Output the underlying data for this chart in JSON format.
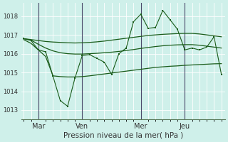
{
  "background_color": "#cff0ea",
  "grid_color": "#b8e0db",
  "line_color": "#1a5c1a",
  "vline_color": "#4a4a6a",
  "ylabel_values": [
    1013,
    1014,
    1015,
    1016,
    1017,
    1018
  ],
  "ylim": [
    1012.5,
    1018.7
  ],
  "xlabel": "Pression niveau de la mer( hPa )",
  "xtick_labels": [
    "Mar",
    "Ven",
    "Mer",
    "Jeu"
  ],
  "xtick_positions": [
    2,
    8,
    16,
    22
  ],
  "vline_positions": [
    2,
    8,
    16,
    22
  ],
  "smooth_upper": [
    1016.8,
    1016.75,
    1016.7,
    1016.65,
    1016.62,
    1016.6,
    1016.58,
    1016.57,
    1016.58,
    1016.6,
    1016.63,
    1016.67,
    1016.72,
    1016.77,
    1016.82,
    1016.87,
    1016.92,
    1016.97,
    1017.0,
    1017.03,
    1017.05,
    1017.07,
    1017.08,
    1017.08,
    1017.05,
    1017.0,
    1016.95,
    1016.9
  ],
  "smooth_lower": [
    1016.8,
    1016.72,
    1016.5,
    1016.3,
    1016.15,
    1016.05,
    1016.0,
    1015.98,
    1015.98,
    1016.0,
    1016.02,
    1016.05,
    1016.08,
    1016.12,
    1016.17,
    1016.22,
    1016.28,
    1016.33,
    1016.38,
    1016.42,
    1016.45,
    1016.47,
    1016.48,
    1016.48,
    1016.45,
    1016.4,
    1016.35,
    1016.3
  ],
  "smooth_bottom": [
    1016.75,
    1016.55,
    1016.2,
    1015.85,
    1014.82,
    1014.78,
    1014.76,
    1014.76,
    1014.78,
    1014.82,
    1014.87,
    1014.92,
    1014.97,
    1015.02,
    1015.07,
    1015.12,
    1015.17,
    1015.22,
    1015.27,
    1015.3,
    1015.33,
    1015.35,
    1015.38,
    1015.4,
    1015.42,
    1015.44,
    1015.46,
    1015.47
  ],
  "jagged_x": [
    0,
    1,
    2,
    3,
    4,
    5,
    6,
    7,
    8,
    9,
    10,
    11,
    12,
    13,
    14,
    15,
    16,
    17,
    18,
    19,
    20,
    21,
    22,
    23,
    24,
    25,
    26,
    27
  ],
  "jagged_y": [
    1016.8,
    1016.7,
    1016.2,
    1016.1,
    1014.8,
    1013.5,
    1013.2,
    1014.7,
    1015.9,
    1015.95,
    1015.75,
    1015.55,
    1014.9,
    1016.0,
    1016.3,
    1017.7,
    1018.1,
    1017.35,
    1017.4,
    1018.3,
    1017.8,
    1017.3,
    1016.2,
    1016.3,
    1016.2,
    1016.35,
    1016.9,
    1014.9
  ],
  "xlim": [
    -0.3,
    27.5
  ]
}
